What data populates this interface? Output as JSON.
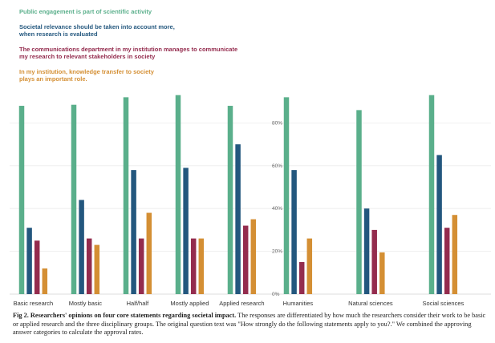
{
  "chart_data": {
    "type": "bar",
    "series": [
      {
        "name": "Public engagement is part of scientific activity",
        "color": "#5aaf8b",
        "values": [
          88,
          88.5,
          92,
          93,
          88,
          92,
          86,
          93
        ]
      },
      {
        "name": "Societal relevance should be taken into account more,\nwhen research is evaluated",
        "color": "#23577e",
        "values": [
          31,
          44,
          58,
          59,
          70,
          58,
          40,
          65
        ]
      },
      {
        "name": "The communications department in my institution manages to communicate\nmy research to relevant stakeholders in society",
        "color": "#942c4e",
        "values": [
          25,
          26,
          26,
          26,
          32,
          15,
          30,
          31
        ]
      },
      {
        "name": "In my institution, knowledge transfer to society\nplays an important role.",
        "color": "#d48f34",
        "values": [
          12,
          23,
          38,
          26,
          35,
          26,
          19.5,
          37
        ]
      }
    ],
    "panels": [
      {
        "categories": [
          "Basic research",
          "Mostly basic",
          "Half/half",
          "Mostly applied",
          "Applied research"
        ]
      },
      {
        "categories": [
          "Humanities",
          "Natural sciences",
          "Social sciences"
        ]
      }
    ],
    "ylim": [
      0,
      100
    ],
    "yticks": [
      "0%",
      "20%",
      "40%",
      "60%",
      "80%"
    ],
    "grid": true
  },
  "caption": {
    "label": "Fig 2. Researchers' opinions on four core statements regarding societal impact.",
    "text": " The responses are differentiated by how much the researchers consider their work to be basic or applied research and the three disciplinary groups. The original question text was \"How strongly do the following statements apply to you?.\" We combined the approving answer categories to calculate the approval rates."
  }
}
